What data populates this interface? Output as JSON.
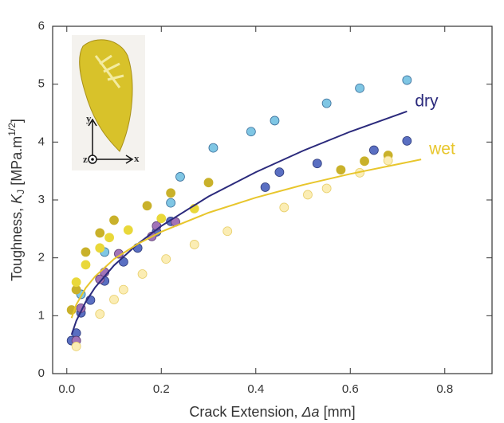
{
  "chart_data": {
    "type": "scatter",
    "x_label": [
      "Crack Extension, ",
      "Δa",
      " [mm]"
    ],
    "y_label": [
      "Toughness, ",
      "K",
      "J",
      " [MPa.m",
      "1/2",
      "]"
    ],
    "xlim": [
      -0.03,
      0.9
    ],
    "ylim": [
      0,
      6
    ],
    "xticks": [
      {
        "value": 0,
        "label": "0.0"
      },
      0.2,
      0.4,
      0.6,
      0.8
    ],
    "yticks": [
      0,
      1,
      2,
      3,
      4,
      5,
      6
    ],
    "inset_labels": [
      "y",
      "x",
      "z"
    ],
    "series": [
      {
        "color": "#7fc6e4",
        "edgecolor": "#3b6f9a",
        "x": [
          0.03,
          0.08,
          0.22,
          0.24,
          0.31,
          0.39,
          0.44,
          0.55,
          0.62,
          0.72
        ],
        "values": [
          1.37,
          2.1,
          2.95,
          3.4,
          3.9,
          4.18,
          4.37,
          4.67,
          4.93,
          5.07
        ]
      },
      {
        "color": "#5a6fc2",
        "edgecolor": "#2e3a7a",
        "x": [
          0.01,
          0.02,
          0.03,
          0.05,
          0.08,
          0.12,
          0.15,
          0.19,
          0.22,
          0.42,
          0.45,
          0.53,
          0.65,
          0.72
        ],
        "values": [
          0.57,
          0.7,
          1.05,
          1.27,
          1.6,
          1.93,
          2.17,
          2.45,
          2.63,
          3.22,
          3.48,
          3.63,
          3.86,
          4.02
        ]
      },
      {
        "color": "#a173b8",
        "edgecolor": "#5e3f74",
        "x": [
          0.02,
          0.03,
          0.07,
          0.08,
          0.11,
          0.18,
          0.19,
          0.23
        ],
        "values": [
          0.57,
          1.13,
          1.63,
          1.75,
          2.07,
          2.37,
          2.55,
          2.62
        ]
      },
      {
        "color": "#c9b12a",
        "edgecolor": "#c9b12a",
        "x": [
          0.01,
          0.02,
          0.04,
          0.07,
          0.1,
          0.17,
          0.22,
          0.3,
          0.58,
          0.63,
          0.68
        ],
        "values": [
          1.1,
          1.45,
          2.1,
          2.43,
          2.65,
          2.9,
          3.12,
          3.3,
          3.52,
          3.67,
          3.77
        ]
      },
      {
        "color": "#e9d83a",
        "edgecolor": "#e9d83a",
        "x": [
          0.02,
          0.04,
          0.07,
          0.09,
          0.13,
          0.2,
          0.27
        ],
        "values": [
          1.58,
          1.88,
          2.17,
          2.35,
          2.48,
          2.68,
          2.85
        ]
      },
      {
        "color": "#fbedb4",
        "edgecolor": "#e8cf6a",
        "x": [
          0.02,
          0.07,
          0.1,
          0.12,
          0.16,
          0.21,
          0.27,
          0.34,
          0.46,
          0.51,
          0.55,
          0.62,
          0.68
        ],
        "values": [
          0.47,
          1.03,
          1.28,
          1.45,
          1.72,
          1.98,
          2.23,
          2.46,
          2.87,
          3.09,
          3.2,
          3.47,
          3.68
        ]
      },
      {
        "type": "line",
        "name": "dry",
        "color": "#2b2a7c",
        "x": [
          0.01,
          0.02,
          0.04,
          0.06,
          0.1,
          0.15,
          0.2,
          0.3,
          0.4,
          0.5,
          0.6,
          0.72
        ],
        "values": [
          0.67,
          0.91,
          1.24,
          1.49,
          1.87,
          2.24,
          2.55,
          3.06,
          3.48,
          3.85,
          4.18,
          4.53
        ]
      },
      {
        "type": "line",
        "name": "wet",
        "color": "#e8c62c",
        "x": [
          0.01,
          0.02,
          0.04,
          0.06,
          0.1,
          0.15,
          0.2,
          0.3,
          0.4,
          0.5,
          0.6,
          0.75
        ],
        "values": [
          0.96,
          1.19,
          1.48,
          1.68,
          1.98,
          2.24,
          2.45,
          2.78,
          3.04,
          3.26,
          3.45,
          3.7
        ]
      }
    ]
  }
}
